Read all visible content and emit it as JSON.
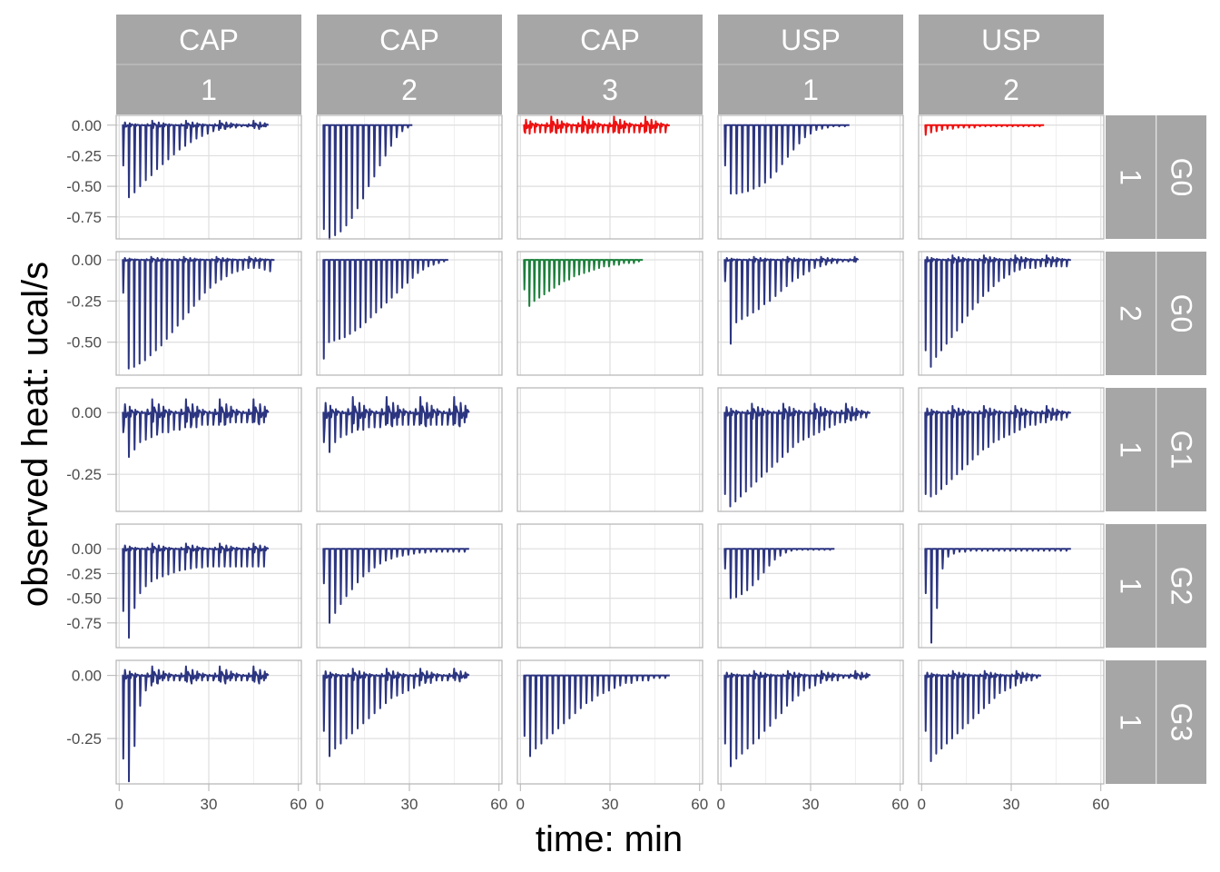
{
  "chart_data": {
    "type": "line",
    "xlabel": "time: min",
    "ylabel": "observed heat: ucal/s",
    "xlim": [
      -1,
      61
    ],
    "x_ticks": [
      "0",
      "30",
      "60"
    ],
    "x_tick_values": [
      0,
      30,
      60
    ],
    "grid": "on",
    "legend": "none",
    "colors": {
      "normal": "#2c3580",
      "red": "#ee1111",
      "green": "#1a7f3a",
      "strip": "#a6a6a6",
      "strip_text": "#ffffff",
      "panel_border": "#b3b3b3",
      "grid": "#dedede"
    },
    "columns": [
      {
        "top": "CAP",
        "bottom": "1"
      },
      {
        "top": "CAP",
        "bottom": "2"
      },
      {
        "top": "CAP",
        "bottom": "3"
      },
      {
        "top": "USP",
        "bottom": "1"
      },
      {
        "top": "USP",
        "bottom": "2"
      }
    ],
    "rows": [
      {
        "inner": "1",
        "outer": "G0",
        "ylim": [
          -0.93,
          0.08
        ],
        "y_ticks": [
          "0.00",
          "-0.25",
          "-0.50",
          "-0.75"
        ],
        "y_tick_values": [
          0,
          -0.25,
          -0.5,
          -0.75
        ]
      },
      {
        "inner": "2",
        "outer": "G0",
        "ylim": [
          -0.7,
          0.05
        ],
        "y_ticks": [
          "0.00",
          "-0.25",
          "-0.50"
        ],
        "y_tick_values": [
          0,
          -0.25,
          -0.5
        ]
      },
      {
        "inner": "1",
        "outer": "G1",
        "ylim": [
          -0.4,
          0.1
        ],
        "y_ticks": [
          "0.00",
          "-0.25"
        ],
        "y_tick_values": [
          0,
          -0.25
        ]
      },
      {
        "inner": "1",
        "outer": "G2",
        "ylim": [
          -1.0,
          0.25
        ],
        "y_ticks": [
          "0.00",
          "-0.25",
          "-0.50",
          "-0.75"
        ],
        "y_tick_values": [
          0,
          -0.25,
          -0.5,
          -0.75
        ]
      },
      {
        "inner": "1",
        "outer": "G3",
        "ylim": [
          -0.43,
          0.06
        ],
        "y_ticks": [
          "0.00",
          "-0.25"
        ],
        "y_tick_values": [
          0,
          -0.25
        ]
      }
    ],
    "panels": [
      [
        {
          "color": "normal",
          "start": 1,
          "end": 50,
          "n": 26,
          "peaks": [
            -0.33,
            -0.59,
            -0.55,
            -0.5,
            -0.45,
            -0.41,
            -0.36,
            -0.32,
            -0.28,
            -0.24,
            -0.2,
            -0.17,
            -0.14,
            -0.11,
            -0.09,
            -0.07,
            -0.05,
            -0.04,
            -0.03,
            -0.02,
            -0.02,
            -0.01,
            -0.01,
            -0.01,
            -0.01,
            -0.01
          ],
          "noise": 0.02
        },
        {
          "color": "normal",
          "start": 1,
          "end": 31,
          "n": 16,
          "peaks": [
            -0.85,
            -0.93,
            -0.9,
            -0.87,
            -0.82,
            -0.76,
            -0.68,
            -0.6,
            -0.5,
            -0.42,
            -0.33,
            -0.25,
            -0.17,
            -0.1,
            -0.05,
            -0.02
          ],
          "noise": 0.0
        },
        {
          "color": "red",
          "start": 1,
          "end": 50,
          "n": 28,
          "peaks": [
            -0.05,
            -0.07,
            -0.06,
            -0.06,
            -0.06,
            -0.06,
            -0.06,
            -0.06,
            -0.06,
            -0.06,
            -0.06,
            -0.06,
            -0.06,
            -0.06,
            -0.06,
            -0.06,
            -0.06,
            -0.06,
            -0.06,
            -0.06,
            -0.06,
            -0.06,
            -0.06,
            -0.06,
            -0.06,
            -0.06,
            -0.06,
            -0.06
          ],
          "noise": 0.04
        },
        {
          "color": "normal",
          "start": 1,
          "end": 43,
          "n": 22,
          "peaks": [
            -0.33,
            -0.56,
            -0.56,
            -0.55,
            -0.54,
            -0.52,
            -0.5,
            -0.47,
            -0.43,
            -0.38,
            -0.32,
            -0.26,
            -0.2,
            -0.15,
            -0.1,
            -0.07,
            -0.04,
            -0.03,
            -0.02,
            -0.01,
            -0.01,
            -0.01
          ],
          "noise": 0.0
        },
        {
          "color": "red",
          "start": 1,
          "end": 41,
          "n": 22,
          "peaks": [
            -0.08,
            -0.06,
            -0.05,
            -0.04,
            -0.03,
            -0.03,
            -0.02,
            -0.02,
            -0.02,
            -0.02,
            -0.01,
            -0.01,
            -0.01,
            -0.01,
            -0.01,
            -0.01,
            -0.01,
            -0.01,
            -0.01,
            -0.01,
            -0.01,
            -0.01
          ],
          "noise": 0.0
        }
      ],
      [
        {
          "color": "normal",
          "start": 1,
          "end": 52,
          "n": 28,
          "peaks": [
            -0.2,
            -0.66,
            -0.65,
            -0.63,
            -0.61,
            -0.58,
            -0.55,
            -0.52,
            -0.48,
            -0.44,
            -0.4,
            -0.36,
            -0.32,
            -0.28,
            -0.24,
            -0.2,
            -0.17,
            -0.14,
            -0.12,
            -0.1,
            -0.08,
            -0.07,
            -0.06,
            -0.05,
            -0.05,
            -0.05,
            -0.06,
            -0.07
          ],
          "noise": 0.01
        },
        {
          "color": "normal",
          "start": 1,
          "end": 43,
          "n": 24,
          "peaks": [
            -0.6,
            -0.5,
            -0.49,
            -0.48,
            -0.47,
            -0.45,
            -0.43,
            -0.41,
            -0.38,
            -0.35,
            -0.32,
            -0.29,
            -0.26,
            -0.23,
            -0.2,
            -0.17,
            -0.14,
            -0.11,
            -0.08,
            -0.06,
            -0.04,
            -0.03,
            -0.02,
            -0.01
          ],
          "noise": 0.0
        },
        {
          "color": "green",
          "start": 1,
          "end": 41,
          "n": 24,
          "peaks": [
            -0.18,
            -0.28,
            -0.25,
            -0.23,
            -0.21,
            -0.19,
            -0.17,
            -0.15,
            -0.13,
            -0.12,
            -0.1,
            -0.09,
            -0.08,
            -0.07,
            -0.06,
            -0.05,
            -0.04,
            -0.04,
            -0.03,
            -0.03,
            -0.02,
            -0.02,
            -0.02,
            -0.01
          ],
          "noise": 0.0
        },
        {
          "color": "normal",
          "start": 1,
          "end": 46,
          "n": 24,
          "peaks": [
            -0.13,
            -0.51,
            -0.38,
            -0.36,
            -0.34,
            -0.32,
            -0.3,
            -0.27,
            -0.25,
            -0.22,
            -0.19,
            -0.16,
            -0.13,
            -0.11,
            -0.09,
            -0.07,
            -0.05,
            -0.04,
            -0.03,
            -0.02,
            -0.02,
            -0.01,
            -0.01,
            -0.01
          ],
          "noise": 0.01
        },
        {
          "color": "normal",
          "start": 1,
          "end": 50,
          "n": 28,
          "peaks": [
            -0.55,
            -0.65,
            -0.59,
            -0.55,
            -0.51,
            -0.47,
            -0.43,
            -0.38,
            -0.34,
            -0.3,
            -0.26,
            -0.22,
            -0.19,
            -0.16,
            -0.13,
            -0.11,
            -0.09,
            -0.07,
            -0.06,
            -0.05,
            -0.05,
            -0.05,
            -0.04,
            -0.04,
            -0.04,
            -0.04,
            -0.04,
            -0.04
          ],
          "noise": 0.015
        }
      ],
      [
        {
          "color": "normal",
          "start": 1,
          "end": 50,
          "n": 26,
          "peaks": [
            -0.08,
            -0.18,
            -0.15,
            -0.12,
            -0.11,
            -0.1,
            -0.09,
            -0.08,
            -0.08,
            -0.07,
            -0.07,
            -0.06,
            -0.06,
            -0.06,
            -0.05,
            -0.05,
            -0.05,
            -0.05,
            -0.05,
            -0.04,
            -0.04,
            -0.04,
            -0.04,
            -0.04,
            -0.04,
            -0.04
          ],
          "noise": 0.03
        },
        {
          "color": "normal",
          "start": 1,
          "end": 50,
          "n": 26,
          "peaks": [
            -0.12,
            -0.16,
            -0.12,
            -0.1,
            -0.09,
            -0.08,
            -0.07,
            -0.07,
            -0.06,
            -0.06,
            -0.06,
            -0.05,
            -0.05,
            -0.05,
            -0.05,
            -0.05,
            -0.05,
            -0.05,
            -0.05,
            -0.05,
            -0.05,
            -0.05,
            -0.05,
            -0.05,
            -0.05,
            -0.04
          ],
          "noise": 0.035
        },
        null,
        {
          "color": "normal",
          "start": 1,
          "end": 50,
          "n": 28,
          "peaks": [
            -0.33,
            -0.38,
            -0.36,
            -0.34,
            -0.32,
            -0.3,
            -0.28,
            -0.26,
            -0.24,
            -0.22,
            -0.2,
            -0.18,
            -0.16,
            -0.14,
            -0.12,
            -0.11,
            -0.1,
            -0.09,
            -0.08,
            -0.07,
            -0.06,
            -0.05,
            -0.04,
            -0.04,
            -0.03,
            -0.03,
            -0.02,
            -0.02
          ],
          "noise": 0.02
        },
        {
          "color": "normal",
          "start": 1,
          "end": 50,
          "n": 28,
          "peaks": [
            -0.33,
            -0.34,
            -0.33,
            -0.31,
            -0.29,
            -0.27,
            -0.25,
            -0.23,
            -0.21,
            -0.19,
            -0.17,
            -0.15,
            -0.14,
            -0.12,
            -0.11,
            -0.1,
            -0.09,
            -0.08,
            -0.07,
            -0.06,
            -0.05,
            -0.05,
            -0.04,
            -0.04,
            -0.03,
            -0.03,
            -0.03,
            -0.02
          ],
          "noise": 0.015
        }
      ],
      [
        {
          "color": "normal",
          "start": 1,
          "end": 50,
          "n": 26,
          "peaks": [
            -0.63,
            -0.9,
            -0.6,
            -0.45,
            -0.38,
            -0.33,
            -0.3,
            -0.28,
            -0.26,
            -0.24,
            -0.22,
            -0.21,
            -0.2,
            -0.19,
            -0.19,
            -0.18,
            -0.18,
            -0.18,
            -0.18,
            -0.18,
            -0.18,
            -0.18,
            -0.18,
            -0.18,
            -0.18,
            -0.18
          ],
          "noise": 0.03
        },
        {
          "color": "normal",
          "start": 1,
          "end": 50,
          "n": 26,
          "peaks": [
            -0.35,
            -0.75,
            -0.65,
            -0.56,
            -0.48,
            -0.41,
            -0.34,
            -0.28,
            -0.23,
            -0.19,
            -0.15,
            -0.12,
            -0.1,
            -0.08,
            -0.07,
            -0.06,
            -0.05,
            -0.04,
            -0.04,
            -0.03,
            -0.03,
            -0.03,
            -0.03,
            -0.03,
            -0.03,
            -0.03
          ],
          "noise": 0.0
        },
        null,
        {
          "color": "normal",
          "start": 1,
          "end": 38,
          "n": 20,
          "peaks": [
            -0.2,
            -0.5,
            -0.49,
            -0.46,
            -0.42,
            -0.37,
            -0.31,
            -0.24,
            -0.17,
            -0.11,
            -0.07,
            -0.04,
            -0.02,
            -0.01,
            -0.01,
            -0.01,
            -0.01,
            -0.01,
            -0.01,
            -0.01
          ],
          "noise": 0.0
        },
        {
          "color": "normal",
          "start": 1,
          "end": 50,
          "n": 26,
          "peaks": [
            -0.45,
            -0.95,
            -0.6,
            -0.2,
            -0.08,
            -0.05,
            -0.03,
            -0.03,
            -0.02,
            -0.02,
            -0.02,
            -0.02,
            -0.02,
            -0.02,
            -0.02,
            -0.02,
            -0.02,
            -0.02,
            -0.02,
            -0.02,
            -0.02,
            -0.02,
            -0.02,
            -0.02,
            -0.02,
            -0.02
          ],
          "noise": 0.0
        }
      ],
      [
        {
          "color": "normal",
          "start": 1,
          "end": 50,
          "n": 26,
          "peaks": [
            -0.33,
            -0.42,
            -0.28,
            -0.12,
            -0.06,
            -0.04,
            -0.03,
            -0.02,
            -0.02,
            -0.02,
            -0.02,
            -0.02,
            -0.02,
            -0.02,
            -0.02,
            -0.02,
            -0.02,
            -0.02,
            -0.02,
            -0.02,
            -0.02,
            -0.02,
            -0.02,
            -0.02,
            -0.02,
            -0.02
          ],
          "noise": 0.02
        },
        {
          "color": "normal",
          "start": 1,
          "end": 50,
          "n": 26,
          "peaks": [
            -0.22,
            -0.32,
            -0.29,
            -0.27,
            -0.25,
            -0.23,
            -0.21,
            -0.19,
            -0.17,
            -0.15,
            -0.13,
            -0.11,
            -0.09,
            -0.08,
            -0.07,
            -0.06,
            -0.05,
            -0.04,
            -0.03,
            -0.03,
            -0.02,
            -0.02,
            -0.02,
            -0.01,
            -0.01,
            -0.01
          ],
          "noise": 0.015
        },
        {
          "color": "normal",
          "start": 1,
          "end": 50,
          "n": 26,
          "peaks": [
            -0.24,
            -0.32,
            -0.29,
            -0.27,
            -0.25,
            -0.23,
            -0.21,
            -0.19,
            -0.17,
            -0.15,
            -0.13,
            -0.11,
            -0.1,
            -0.08,
            -0.07,
            -0.06,
            -0.05,
            -0.04,
            -0.03,
            -0.03,
            -0.02,
            -0.02,
            -0.02,
            -0.01,
            -0.01,
            -0.01
          ],
          "noise": 0.0
        },
        {
          "color": "normal",
          "start": 1,
          "end": 50,
          "n": 26,
          "peaks": [
            -0.27,
            -0.36,
            -0.33,
            -0.31,
            -0.29,
            -0.27,
            -0.25,
            -0.22,
            -0.2,
            -0.17,
            -0.15,
            -0.12,
            -0.1,
            -0.08,
            -0.06,
            -0.05,
            -0.04,
            -0.03,
            -0.02,
            -0.02,
            -0.02,
            -0.01,
            -0.01,
            -0.01,
            -0.01,
            -0.01
          ],
          "noise": 0.01
        },
        {
          "color": "normal",
          "start": 1,
          "end": 40,
          "n": 22,
          "peaks": [
            -0.22,
            -0.34,
            -0.31,
            -0.29,
            -0.27,
            -0.25,
            -0.23,
            -0.21,
            -0.19,
            -0.17,
            -0.15,
            -0.13,
            -0.11,
            -0.09,
            -0.07,
            -0.06,
            -0.05,
            -0.04,
            -0.03,
            -0.02,
            -0.02,
            -0.01
          ],
          "noise": 0.01
        }
      ]
    ]
  }
}
